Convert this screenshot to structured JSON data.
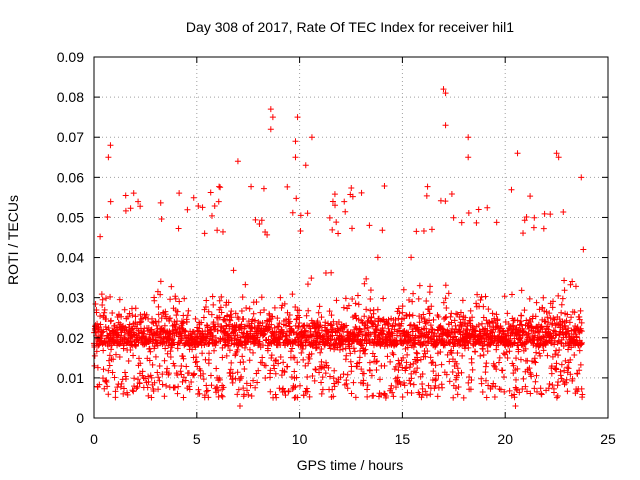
{
  "chart_data": {
    "type": "scatter",
    "title": "Day 308 of 2017, Rate Of TEC Index for receiver hil1",
    "xlabel": "GPS time / hours",
    "ylabel": "ROTI / TECUs",
    "xlim": [
      0,
      25
    ],
    "ylim": [
      0,
      0.09
    ],
    "xticks": [
      0,
      5,
      10,
      15,
      20,
      25
    ],
    "xtick_labels": [
      "0",
      "5",
      "10",
      "15",
      "20",
      "25"
    ],
    "yticks": [
      0,
      0.01,
      0.02,
      0.03,
      0.04,
      0.05,
      0.06,
      0.07,
      0.08,
      0.09
    ],
    "ytick_labels": [
      "0",
      "0.01",
      "0.02",
      "0.03",
      "0.04",
      "0.05",
      "0.06",
      "0.07",
      "0.08",
      "0.09"
    ],
    "grid": true,
    "marker": "plus",
    "color": "#ff0000",
    "series": [
      {
        "name": "ROTI",
        "x_range": [
          0,
          23.75
        ],
        "sample_interval_hours": 0.0167,
        "typical_range": [
          0.005,
          0.045
        ],
        "median": 0.018,
        "notable_points": [
          {
            "x": 0.8,
            "y": 0.068
          },
          {
            "x": 0.7,
            "y": 0.065
          },
          {
            "x": 7.0,
            "y": 0.064
          },
          {
            "x": 7.1,
            "y": 0.003
          },
          {
            "x": 8.6,
            "y": 0.077
          },
          {
            "x": 8.7,
            "y": 0.075
          },
          {
            "x": 8.6,
            "y": 0.072
          },
          {
            "x": 9.9,
            "y": 0.075
          },
          {
            "x": 9.8,
            "y": 0.069
          },
          {
            "x": 9.8,
            "y": 0.065
          },
          {
            "x": 10.6,
            "y": 0.07
          },
          {
            "x": 10.3,
            "y": 0.063
          },
          {
            "x": 17.0,
            "y": 0.082
          },
          {
            "x": 17.1,
            "y": 0.081
          },
          {
            "x": 17.1,
            "y": 0.073
          },
          {
            "x": 18.2,
            "y": 0.07
          },
          {
            "x": 18.2,
            "y": 0.065
          },
          {
            "x": 20.6,
            "y": 0.066
          },
          {
            "x": 20.5,
            "y": 0.003
          },
          {
            "x": 22.5,
            "y": 0.066
          },
          {
            "x": 22.6,
            "y": 0.065
          },
          {
            "x": 23.7,
            "y": 0.06
          },
          {
            "x": 23.8,
            "y": 0.042
          }
        ]
      }
    ]
  }
}
